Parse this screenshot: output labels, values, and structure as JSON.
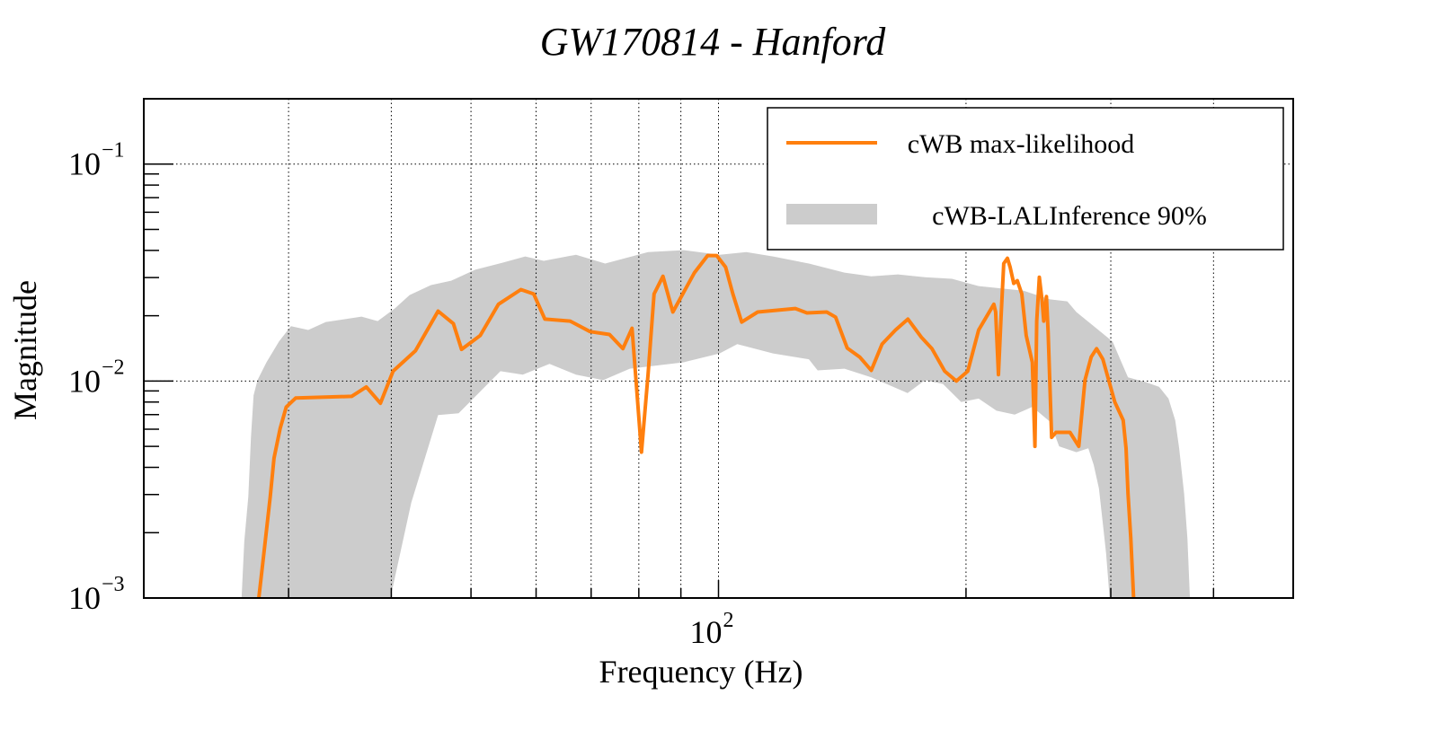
{
  "chart_data": {
    "type": "line",
    "title": "GW170814 - Hanford",
    "xlabel": "Frequency (Hz)",
    "ylabel": "Magnitude",
    "xscale": "log",
    "yscale": "log",
    "xlim": [
      20,
      500
    ],
    "ylim": [
      0.001,
      0.2
    ],
    "grid": true,
    "x_major_ticks": [
      {
        "value": 100,
        "base": "10",
        "exp": "2"
      }
    ],
    "x_minor_gridlines": [
      30,
      40,
      50,
      60,
      70,
      80,
      90,
      200,
      300,
      400
    ],
    "y_major_ticks": [
      {
        "value": 0.1,
        "base": "10",
        "exp": "−1"
      },
      {
        "value": 0.01,
        "base": "10",
        "exp": "−2"
      },
      {
        "value": 0.001,
        "base": "10",
        "exp": "−3"
      }
    ],
    "legend_position": "top-right",
    "colors": {
      "line": "#ff7f0e",
      "band": "#cccccc",
      "axis": "#000000"
    },
    "series": [
      {
        "name": "cWB max-likelihood",
        "kind": "line",
        "points": [
          [
            27.6,
            0.001
          ],
          [
            28.1,
            0.00182
          ],
          [
            28.5,
            0.00293
          ],
          [
            28.8,
            0.00441
          ],
          [
            29.3,
            0.00604
          ],
          [
            29.8,
            0.00759
          ],
          [
            30.6,
            0.00835
          ],
          [
            35.8,
            0.0085
          ],
          [
            37.3,
            0.0094
          ],
          [
            38.8,
            0.0079
          ],
          [
            40.2,
            0.0111
          ],
          [
            42.8,
            0.0138
          ],
          [
            45.6,
            0.021
          ],
          [
            47.6,
            0.0184
          ],
          [
            48.7,
            0.014
          ],
          [
            51.3,
            0.0162
          ],
          [
            54.0,
            0.0226
          ],
          [
            57.5,
            0.0264
          ],
          [
            59.6,
            0.0252
          ],
          [
            61.5,
            0.0193
          ],
          [
            66.0,
            0.0189
          ],
          [
            69.8,
            0.0169
          ],
          [
            73.7,
            0.0164
          ],
          [
            76.5,
            0.0141
          ],
          [
            78.5,
            0.0175
          ],
          [
            80.6,
            0.0047
          ],
          [
            82.1,
            0.0107
          ],
          [
            83.5,
            0.0252
          ],
          [
            85.6,
            0.0304
          ],
          [
            88.0,
            0.0208
          ],
          [
            93.5,
            0.0316
          ],
          [
            97.0,
            0.0379
          ],
          [
            99.5,
            0.0379
          ],
          [
            102.0,
            0.0335
          ],
          [
            104.1,
            0.0252
          ],
          [
            106.7,
            0.0187
          ],
          [
            111.6,
            0.0208
          ],
          [
            124.0,
            0.0216
          ],
          [
            128.1,
            0.0206
          ],
          [
            135.4,
            0.0208
          ],
          [
            138.8,
            0.0197
          ],
          [
            143.4,
            0.0142
          ],
          [
            148.5,
            0.0129
          ],
          [
            153.4,
            0.0112
          ],
          [
            158.1,
            0.0148
          ],
          [
            164.2,
            0.0172
          ],
          [
            170.0,
            0.0193
          ],
          [
            176.5,
            0.0159
          ],
          [
            181.8,
            0.0141
          ],
          [
            188.4,
            0.0111
          ],
          [
            194.7,
            0.01
          ],
          [
            201.0,
            0.0111
          ],
          [
            207.2,
            0.0172
          ],
          [
            216.2,
            0.0226
          ],
          [
            217.3,
            0.0208
          ],
          [
            219.0,
            0.0107
          ],
          [
            220.6,
            0.0197
          ],
          [
            222.3,
            0.0348
          ],
          [
            224.6,
            0.0368
          ],
          [
            226.3,
            0.0335
          ],
          [
            228.6,
            0.0282
          ],
          [
            230.9,
            0.029
          ],
          [
            233.8,
            0.0252
          ],
          [
            236.7,
            0.0162
          ],
          [
            240.8,
            0.0122
          ],
          [
            242.6,
            0.005
          ],
          [
            243.8,
            0.0189
          ],
          [
            245.6,
            0.0301
          ],
          [
            247.4,
            0.0238
          ],
          [
            248.6,
            0.0189
          ],
          [
            250.5,
            0.0245
          ],
          [
            251.7,
            0.0168
          ],
          [
            254.2,
            0.0055
          ],
          [
            257.3,
            0.0058
          ],
          [
            267.6,
            0.0058
          ],
          [
            274.3,
            0.005
          ],
          [
            279.1,
            0.0101
          ],
          [
            284.0,
            0.0129
          ],
          [
            288.3,
            0.0141
          ],
          [
            293.4,
            0.0126
          ],
          [
            303.4,
            0.008
          ],
          [
            310.6,
            0.0066
          ],
          [
            313.1,
            0.0049
          ],
          [
            314.8,
            0.00302
          ],
          [
            317.3,
            0.00188
          ],
          [
            319.8,
            0.001
          ]
        ]
      },
      {
        "name": "cWB-LALInference 90%",
        "kind": "band",
        "upper": [
          [
            26.3,
            0.001
          ],
          [
            26.5,
            0.00182
          ],
          [
            26.8,
            0.00293
          ],
          [
            27.0,
            0.0055
          ],
          [
            27.2,
            0.0086
          ],
          [
            27.5,
            0.0101
          ],
          [
            28.2,
            0.0122
          ],
          [
            29.2,
            0.0152
          ],
          [
            30.2,
            0.0179
          ],
          [
            31.7,
            0.0172
          ],
          [
            33.3,
            0.0187
          ],
          [
            36.8,
            0.0198
          ],
          [
            38.5,
            0.0189
          ],
          [
            40.4,
            0.0216
          ],
          [
            42.1,
            0.0249
          ],
          [
            44.7,
            0.0277
          ],
          [
            47.3,
            0.029
          ],
          [
            50.6,
            0.0326
          ],
          [
            54.6,
            0.0351
          ],
          [
            58.2,
            0.0375
          ],
          [
            61.3,
            0.0358
          ],
          [
            67.1,
            0.0382
          ],
          [
            72.8,
            0.0348
          ],
          [
            82.1,
            0.0393
          ],
          [
            90.7,
            0.0401
          ],
          [
            100.3,
            0.0382
          ],
          [
            108.1,
            0.0393
          ],
          [
            116.5,
            0.0375
          ],
          [
            128.8,
            0.0348
          ],
          [
            142.3,
            0.0316
          ],
          [
            153.4,
            0.0304
          ],
          [
            165.3,
            0.031
          ],
          [
            178.3,
            0.0301
          ],
          [
            192.3,
            0.0296
          ],
          [
            207.2,
            0.0274
          ],
          [
            234.9,
            0.0261
          ],
          [
            253.0,
            0.0238
          ],
          [
            265.6,
            0.0233
          ],
          [
            272.4,
            0.0208
          ],
          [
            286.0,
            0.0179
          ],
          [
            301.5,
            0.0152
          ],
          [
            309.1,
            0.0122
          ],
          [
            314.8,
            0.0104
          ],
          [
            330.4,
            0.0099
          ],
          [
            343.5,
            0.0094
          ],
          [
            352.6,
            0.0083
          ],
          [
            359.3,
            0.0066
          ],
          [
            363.3,
            0.0049
          ],
          [
            368.4,
            0.00302
          ],
          [
            371.8,
            0.00188
          ],
          [
            374.4,
            0.001
          ]
        ],
        "lower": [
          [
            39.9,
            0.001
          ],
          [
            42.3,
            0.00275
          ],
          [
            45.6,
            0.00697
          ],
          [
            48.3,
            0.0071
          ],
          [
            54.3,
            0.0111
          ],
          [
            57.8,
            0.0107
          ],
          [
            62.3,
            0.012
          ],
          [
            67.1,
            0.0107
          ],
          [
            72.4,
            0.0101
          ],
          [
            78.0,
            0.0114
          ],
          [
            90.7,
            0.0122
          ],
          [
            100.3,
            0.0134
          ],
          [
            105.4,
            0.0148
          ],
          [
            116.5,
            0.0134
          ],
          [
            128.8,
            0.0126
          ],
          [
            132.0,
            0.0112
          ],
          [
            142.3,
            0.0114
          ],
          [
            153.4,
            0.0104
          ],
          [
            165.3,
            0.0092
          ],
          [
            169.8,
            0.0088
          ],
          [
            178.3,
            0.0101
          ],
          [
            187.5,
            0.0097
          ],
          [
            197.3,
            0.008
          ],
          [
            207.2,
            0.0083
          ],
          [
            217.8,
            0.0073
          ],
          [
            229.2,
            0.007
          ],
          [
            240.8,
            0.0076
          ],
          [
            253.0,
            0.0065
          ],
          [
            259.6,
            0.005
          ],
          [
            272.4,
            0.0047
          ],
          [
            281.7,
            0.0049
          ],
          [
            286.0,
            0.0041
          ],
          [
            290.2,
            0.0032
          ],
          [
            293.4,
            0.0022
          ],
          [
            296.1,
            0.0016
          ],
          [
            299.0,
            0.001
          ]
        ]
      }
    ]
  }
}
